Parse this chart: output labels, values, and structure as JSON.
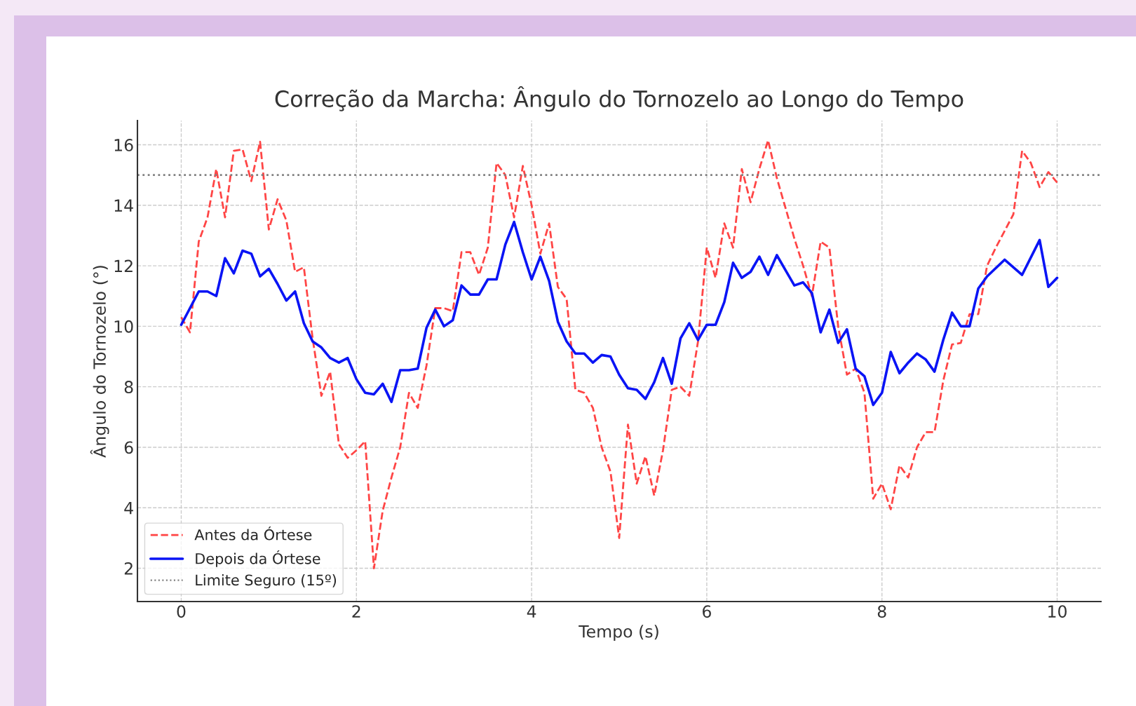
{
  "chart_data": {
    "type": "line",
    "title": "Correção da Marcha: Ângulo do Tornozelo ao Longo do Tempo",
    "xlabel": "Tempo (s)",
    "ylabel": "Ângulo do Tornozelo (°)",
    "xlim": [
      -0.5,
      10.5
    ],
    "ylim": [
      0.9,
      16.8
    ],
    "xticks": [
      0,
      2,
      4,
      6,
      8,
      10
    ],
    "yticks": [
      2,
      4,
      6,
      8,
      10,
      12,
      14,
      16
    ],
    "grid": true,
    "legend": "bottom left",
    "series": [
      {
        "name": "Antes da Órtese",
        "color": "#ff4545",
        "line_style": "dashed",
        "x": [
          0,
          0.1,
          0.2,
          0.3,
          0.4,
          0.5,
          0.6,
          0.7,
          0.8,
          0.9,
          1.0,
          1.1,
          1.2,
          1.3,
          1.4,
          1.5,
          1.6,
          1.7,
          1.8,
          1.9,
          2.0,
          2.1,
          2.2,
          2.3,
          2.4,
          2.5,
          2.6,
          2.7,
          2.8,
          2.9,
          3.0,
          3.1,
          3.2,
          3.3,
          3.4,
          3.5,
          3.6,
          3.7,
          3.8,
          3.9,
          4.0,
          4.1,
          4.2,
          4.3,
          4.4,
          4.5,
          4.6,
          4.7,
          4.8,
          4.9,
          5.0,
          5.1,
          5.2,
          5.3,
          5.4,
          5.5,
          5.6,
          5.7,
          5.8,
          5.9,
          6.0,
          6.1,
          6.2,
          6.3,
          6.4,
          6.5,
          6.6,
          6.7,
          6.8,
          6.9,
          7.0,
          7.1,
          7.2,
          7.3,
          7.4,
          7.5,
          7.6,
          7.7,
          7.8,
          7.9,
          8.0,
          8.1,
          8.2,
          8.3,
          8.4,
          8.5,
          8.6,
          8.7,
          8.8,
          8.9,
          9.0,
          9.1,
          9.2,
          9.3,
          9.5,
          9.6,
          9.7,
          9.8,
          9.9,
          10.0
        ],
        "values": [
          10.3,
          9.8,
          12.8,
          13.6,
          15.2,
          13.6,
          15.8,
          15.85,
          14.8,
          16.1,
          13.2,
          14.2,
          13.5,
          11.8,
          11.95,
          9.6,
          7.7,
          8.5,
          6.1,
          5.65,
          5.9,
          6.2,
          2.0,
          3.9,
          5.0,
          6.0,
          7.8,
          7.3,
          8.7,
          10.6,
          10.6,
          10.5,
          12.45,
          12.45,
          11.7,
          12.6,
          15.4,
          15.0,
          13.6,
          15.3,
          14.0,
          12.4,
          13.4,
          11.3,
          10.9,
          7.9,
          7.8,
          7.3,
          6.0,
          5.2,
          3.0,
          6.75,
          4.8,
          5.7,
          4.4,
          5.9,
          7.9,
          8.0,
          7.7,
          9.5,
          12.6,
          11.6,
          13.4,
          12.6,
          15.2,
          14.1,
          15.2,
          16.15,
          14.9,
          13.9,
          12.9,
          12.0,
          11.0,
          12.8,
          12.6,
          10.0,
          8.4,
          8.6,
          7.8,
          4.3,
          4.8,
          3.95,
          5.4,
          5.0,
          6.0,
          6.5,
          6.5,
          8.2,
          9.4,
          9.45,
          10.4,
          10.4,
          12.0,
          12.6,
          13.7,
          15.8,
          15.4,
          14.6,
          15.1,
          14.75
        ]
      },
      {
        "name": "Depois da Órtese",
        "color": "#0a14f5",
        "line_style": "solid",
        "x": [
          0,
          0.2,
          0.3,
          0.4,
          0.5,
          0.6,
          0.7,
          0.8,
          0.9,
          1.0,
          1.1,
          1.2,
          1.3,
          1.4,
          1.5,
          1.6,
          1.7,
          1.8,
          1.9,
          2.0,
          2.1,
          2.2,
          2.3,
          2.4,
          2.5,
          2.6,
          2.7,
          2.8,
          2.9,
          3.0,
          3.1,
          3.2,
          3.3,
          3.4,
          3.5,
          3.6,
          3.7,
          3.8,
          3.9,
          4.0,
          4.1,
          4.2,
          4.3,
          4.4,
          4.5,
          4.6,
          4.7,
          4.8,
          4.9,
          5.0,
          5.1,
          5.2,
          5.3,
          5.4,
          5.5,
          5.6,
          5.7,
          5.8,
          5.9,
          6.0,
          6.1,
          6.2,
          6.3,
          6.4,
          6.5,
          6.6,
          6.7,
          6.8,
          6.9,
          7.0,
          7.1,
          7.2,
          7.3,
          7.4,
          7.5,
          7.6,
          7.7,
          7.8,
          7.9,
          8.0,
          8.1,
          8.2,
          8.3,
          8.4,
          8.5,
          8.6,
          8.7,
          8.8,
          8.9,
          9.0,
          9.1,
          9.2,
          9.4,
          9.6,
          9.8,
          9.9,
          10.0
        ],
        "values": [
          10.05,
          11.15,
          11.15,
          11.0,
          12.25,
          11.75,
          12.5,
          12.4,
          11.65,
          11.9,
          11.4,
          10.85,
          11.15,
          10.1,
          9.5,
          9.3,
          8.95,
          8.8,
          8.95,
          8.25,
          7.8,
          7.75,
          8.1,
          7.5,
          8.55,
          8.55,
          8.6,
          9.95,
          10.55,
          10.0,
          10.2,
          11.35,
          11.05,
          11.05,
          11.55,
          11.55,
          12.7,
          13.45,
          12.45,
          11.55,
          12.3,
          11.5,
          10.15,
          9.5,
          9.1,
          9.1,
          8.8,
          9.05,
          9.0,
          8.4,
          7.95,
          7.9,
          7.6,
          8.15,
          8.95,
          8.1,
          9.6,
          10.1,
          9.55,
          10.05,
          10.05,
          10.8,
          12.1,
          11.6,
          11.8,
          12.3,
          11.7,
          12.35,
          11.85,
          11.35,
          11.45,
          11.1,
          9.8,
          10.55,
          9.45,
          9.9,
          8.6,
          8.35,
          7.4,
          7.8,
          9.15,
          8.45,
          8.8,
          9.1,
          8.9,
          8.5,
          9.55,
          10.45,
          10.0,
          10.0,
          11.25,
          11.65,
          12.2,
          11.7,
          12.85,
          11.3,
          11.6
        ]
      }
    ],
    "ref_lines": [
      {
        "axis": "y",
        "value": 15,
        "label": "Limite Seguro (15º)",
        "color": "#808080",
        "line_style": "dotted"
      }
    ]
  }
}
